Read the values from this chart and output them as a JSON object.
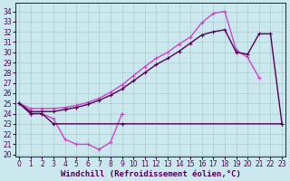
{
  "xlabel": "Windchill (Refroidissement éolien,°C)",
  "bg": "#cce8ef",
  "grid_color": "#aacccc",
  "xlim": [
    -0.3,
    23.3
  ],
  "ylim": [
    19.8,
    34.8
  ],
  "ytick_vals": [
    20,
    21,
    22,
    23,
    24,
    25,
    26,
    27,
    28,
    29,
    30,
    31,
    32,
    33,
    34
  ],
  "xtick_vals": [
    0,
    1,
    2,
    3,
    4,
    5,
    6,
    7,
    8,
    9,
    10,
    11,
    12,
    13,
    14,
    15,
    16,
    17,
    18,
    19,
    20,
    21,
    22,
    23
  ],
  "color_light": "#cc44cc",
  "color_dark": "#550055",
  "lw": 1.0,
  "ms": 3.5,
  "tick_labelsize": 5.5,
  "xlabel_fontsize": 6.5,
  "curves": [
    {
      "color": "#cc44cc",
      "x": [
        0,
        1,
        2,
        3,
        4,
        5,
        6,
        7,
        8,
        9
      ],
      "y": [
        25.0,
        24.0,
        24.0,
        23.5,
        21.5,
        21.0,
        21.0,
        20.5,
        21.2,
        24.0
      ]
    },
    {
      "color": "#550055",
      "x": [
        0,
        1,
        2,
        3,
        9,
        23
      ],
      "y": [
        25.0,
        24.0,
        24.0,
        23.0,
        23.0,
        23.0
      ]
    },
    {
      "color": "#cc44cc",
      "x": [
        0,
        1,
        2,
        3,
        4,
        5,
        6,
        7,
        8,
        9,
        10,
        11,
        12,
        13,
        14,
        15,
        16,
        17,
        18,
        19,
        20,
        21
      ],
      "y": [
        25.0,
        24.5,
        24.5,
        24.5,
        24.6,
        24.8,
        25.1,
        25.5,
        26.1,
        26.8,
        27.7,
        28.6,
        29.4,
        30.0,
        30.8,
        31.5,
        32.9,
        33.8,
        34.0,
        30.2,
        29.5,
        27.5
      ]
    },
    {
      "color": "#550055",
      "x": [
        0,
        1,
        2,
        3,
        4,
        5,
        6,
        7,
        8,
        9,
        10,
        11,
        12,
        13,
        14,
        15,
        16,
        17,
        18,
        19,
        20,
        21,
        22,
        23
      ],
      "y": [
        25.0,
        24.2,
        24.2,
        24.2,
        24.4,
        24.6,
        24.9,
        25.3,
        25.8,
        26.4,
        27.2,
        28.0,
        28.8,
        29.4,
        30.1,
        30.9,
        31.7,
        32.0,
        32.2,
        30.0,
        29.8,
        31.8,
        31.8,
        23.0
      ]
    }
  ]
}
